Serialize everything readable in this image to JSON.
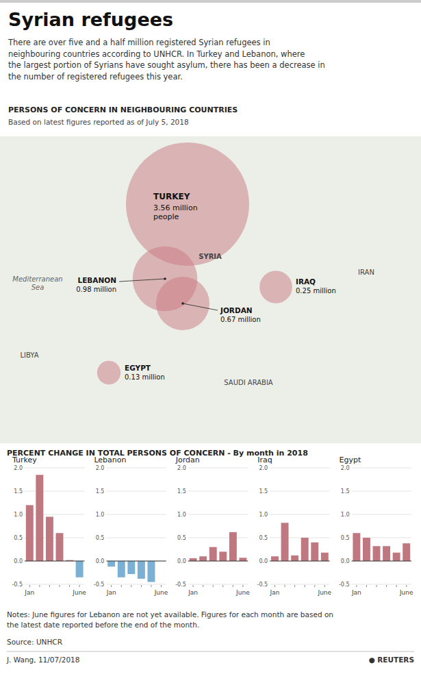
{
  "title": "Syrian refugees",
  "subtitle": "There are over five and a half million registered Syrian refugees in\nneighbouring countries according to UNHCR. In Turkey and Lebanon, where\nthe largest portion of Syrians have sought asylum, there has been a decrease in\nthe number of registered refugees this year.",
  "chart_title": "PERCENT CHANGE IN TOTAL PERSONS OF CONCERN - By month in 2018",
  "notes": "Notes: June figures for Lebanon are not yet available. Figures for each month are based on\nthe latest date reported before the end of the month.",
  "source": "Source: UNHCR",
  "credit": "J. Wang,  11/07/2018",
  "annotations": [
    "● REUTERS"
  ],
  "chart_data": [
    {
      "type": "bubble",
      "title": "PERSONS OF CONCERN IN NEIGHBOURING COUNTRIES",
      "subtitle": "Based on latest figures reported as of July 5, 2018",
      "categories": [
        "TURKEY",
        "LEBANON",
        "JORDAN",
        "IRAQ",
        "EGYPT"
      ],
      "values": [
        3.56,
        0.98,
        0.67,
        0.25,
        0.13
      ],
      "value_labels": [
        "3.56 million\npeople",
        "0.98 million",
        "0.67 million",
        "0.25 million",
        "0.13 million"
      ],
      "data_labels": true,
      "color": "#c87880",
      "annotations": [
        "Mediterranean\nSea",
        "IRAN",
        "LIBYA",
        "SAUDI ARABIA",
        "SYRIA"
      ]
    },
    {
      "type": "bar",
      "title": "Turkey",
      "categories": [
        "Jan",
        null,
        null,
        null,
        null,
        "June"
      ],
      "values": [
        1.2,
        1.85,
        0.95,
        0.6,
        0.02,
        -0.35
      ],
      "colors": [
        "#c07880",
        "#c07880",
        "#c07880",
        "#c07880",
        "#c07880",
        "#7ab0d4"
      ],
      "ylim": [
        -0.5,
        2.0
      ],
      "yticks": [
        -0.5,
        {
          "value": 0,
          "label": "0.0"
        },
        0.5,
        {
          "value": 1,
          "label": "1.0"
        },
        1.5,
        {
          "value": 2,
          "label": "2.0"
        }
      ],
      "grid": true
    },
    {
      "type": "bar",
      "title": "Lebanon",
      "categories": [
        "Jan",
        null,
        null,
        null,
        null,
        "June"
      ],
      "values": [
        -0.12,
        -0.35,
        -0.28,
        -0.38,
        -0.45,
        null
      ],
      "colors": [
        "#7ab0d4",
        "#7ab0d4",
        "#7ab0d4",
        "#7ab0d4",
        "#7ab0d4",
        null
      ],
      "ylim": [
        -0.5,
        2.0
      ],
      "yticks": [
        -0.5,
        {
          "value": 0,
          "label": "0.0"
        },
        0.5,
        {
          "value": 1,
          "label": "1.0"
        },
        1.5,
        {
          "value": 2,
          "label": "2.0"
        }
      ],
      "grid": true
    },
    {
      "type": "bar",
      "title": "Jordan",
      "categories": [
        "Jan",
        null,
        null,
        null,
        null,
        "June"
      ],
      "values": [
        0.06,
        0.1,
        0.3,
        0.2,
        0.62,
        0.07
      ],
      "colors": [
        "#c07880",
        "#c07880",
        "#c07880",
        "#c07880",
        "#c07880",
        "#c07880"
      ],
      "ylim": [
        -0.5,
        2.0
      ],
      "yticks": [
        -0.5,
        {
          "value": 0,
          "label": "0.0"
        },
        0.5,
        {
          "value": 1,
          "label": "1.0"
        },
        1.5,
        {
          "value": 2,
          "label": "2.0"
        }
      ],
      "grid": true
    },
    {
      "type": "bar",
      "title": "Iraq",
      "categories": [
        "Jan",
        null,
        null,
        null,
        null,
        "June"
      ],
      "values": [
        0.1,
        0.82,
        0.12,
        0.5,
        0.4,
        0.18
      ],
      "colors": [
        "#c07880",
        "#c07880",
        "#c07880",
        "#c07880",
        "#c07880",
        "#c07880"
      ],
      "ylim": [
        -0.5,
        2.0
      ],
      "yticks": [
        -0.5,
        {
          "value": 0,
          "label": "0.0"
        },
        0.5,
        {
          "value": 1,
          "label": "1.0"
        },
        1.5,
        {
          "value": 2,
          "label": "2.0"
        }
      ],
      "grid": true
    },
    {
      "type": "bar",
      "title": "Egypt",
      "categories": [
        "Jan",
        null,
        null,
        null,
        null,
        "June"
      ],
      "values": [
        0.6,
        0.5,
        0.32,
        0.32,
        0.18,
        0.38
      ],
      "colors": [
        "#c07880",
        "#c07880",
        "#c07880",
        "#c07880",
        "#c07880",
        "#c07880"
      ],
      "ylim": [
        -0.5,
        2.0
      ],
      "yticks": [
        -0.5,
        {
          "value": 0,
          "label": "0.0"
        },
        0.5,
        {
          "value": 1,
          "label": "1.0"
        },
        1.5,
        {
          "value": 2,
          "label": "2.0"
        }
      ],
      "grid": true
    }
  ]
}
